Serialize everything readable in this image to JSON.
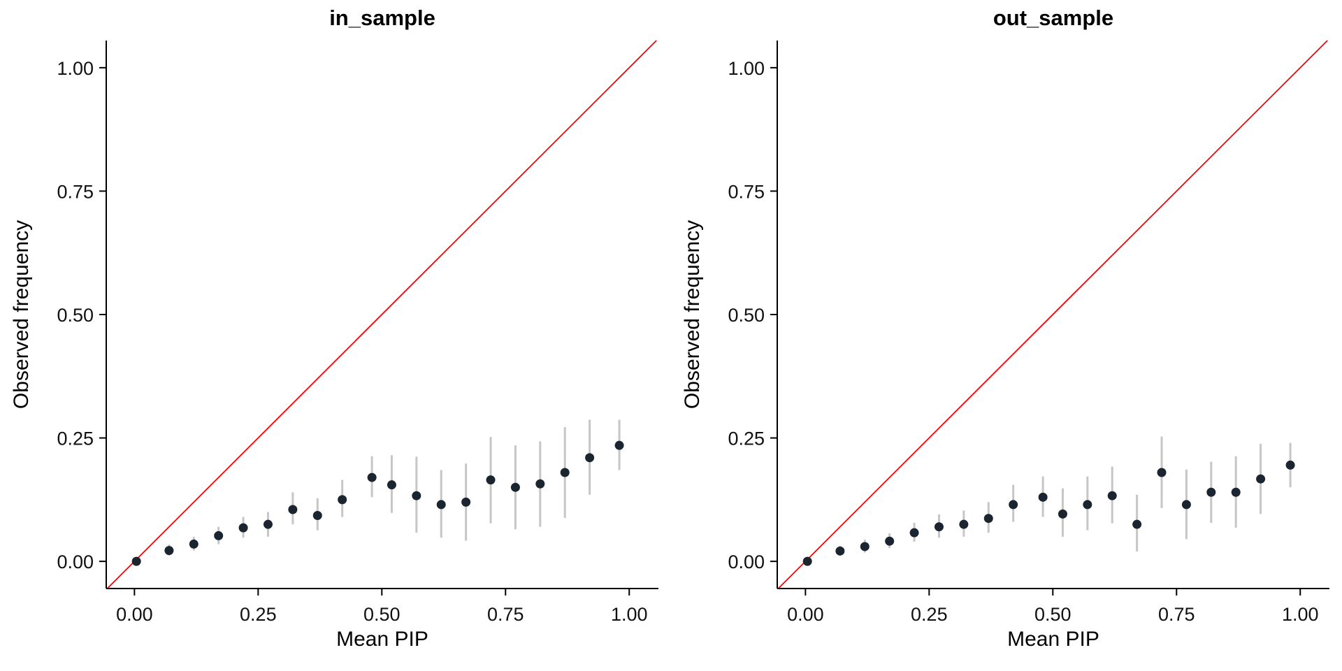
{
  "figure": {
    "background": "#ffffff"
  },
  "colors": {
    "point": "#1a2530",
    "errorbar": "#c6c6c6",
    "reference_line": "#ff0000",
    "axis": "#000000",
    "text": "#000000"
  },
  "chart_data": [
    {
      "type": "scatter",
      "title": "in_sample",
      "xlabel": "Mean PIP",
      "ylabel": "Observed frequency",
      "xlim": [
        -0.057,
        1.059
      ],
      "ylim": [
        -0.055,
        1.055
      ],
      "xtick_values": [
        0,
        0.25,
        0.5,
        0.75,
        1.0
      ],
      "xtick_labels": [
        "0.00",
        "0.25",
        "0.50",
        "0.75",
        "1.00"
      ],
      "ytick_values": [
        0,
        0.25,
        0.5,
        0.75,
        1.0
      ],
      "ytick_labels": [
        "0.00",
        "0.25",
        "0.50",
        "0.75",
        "1.00"
      ],
      "grid": false,
      "legend": "none",
      "reference_line": {
        "kind": "identity",
        "description": "y = x diagonal"
      },
      "points": [
        {
          "x": 0.004,
          "y": 0.0,
          "lo": 0.0,
          "hi": 0.004
        },
        {
          "x": 0.07,
          "y": 0.022,
          "lo": 0.012,
          "hi": 0.034
        },
        {
          "x": 0.12,
          "y": 0.035,
          "lo": 0.022,
          "hi": 0.05
        },
        {
          "x": 0.17,
          "y": 0.052,
          "lo": 0.035,
          "hi": 0.07
        },
        {
          "x": 0.22,
          "y": 0.068,
          "lo": 0.048,
          "hi": 0.09
        },
        {
          "x": 0.27,
          "y": 0.075,
          "lo": 0.05,
          "hi": 0.1
        },
        {
          "x": 0.32,
          "y": 0.105,
          "lo": 0.075,
          "hi": 0.14
        },
        {
          "x": 0.37,
          "y": 0.093,
          "lo": 0.063,
          "hi": 0.128
        },
        {
          "x": 0.42,
          "y": 0.125,
          "lo": 0.09,
          "hi": 0.165
        },
        {
          "x": 0.48,
          "y": 0.17,
          "lo": 0.13,
          "hi": 0.213
        },
        {
          "x": 0.52,
          "y": 0.155,
          "lo": 0.098,
          "hi": 0.215
        },
        {
          "x": 0.57,
          "y": 0.133,
          "lo": 0.058,
          "hi": 0.212
        },
        {
          "x": 0.62,
          "y": 0.115,
          "lo": 0.048,
          "hi": 0.185
        },
        {
          "x": 0.67,
          "y": 0.12,
          "lo": 0.042,
          "hi": 0.198
        },
        {
          "x": 0.72,
          "y": 0.165,
          "lo": 0.077,
          "hi": 0.252
        },
        {
          "x": 0.77,
          "y": 0.15,
          "lo": 0.065,
          "hi": 0.235
        },
        {
          "x": 0.82,
          "y": 0.157,
          "lo": 0.07,
          "hi": 0.243
        },
        {
          "x": 0.87,
          "y": 0.18,
          "lo": 0.088,
          "hi": 0.272
        },
        {
          "x": 0.92,
          "y": 0.21,
          "lo": 0.135,
          "hi": 0.287
        },
        {
          "x": 0.98,
          "y": 0.235,
          "lo": 0.185,
          "hi": 0.287
        }
      ]
    },
    {
      "type": "scatter",
      "title": "out_sample",
      "xlabel": "Mean PIP",
      "ylabel": "Observed frequency",
      "xlim": [
        -0.057,
        1.059
      ],
      "ylim": [
        -0.055,
        1.055
      ],
      "xtick_values": [
        0,
        0.25,
        0.5,
        0.75,
        1.0
      ],
      "xtick_labels": [
        "0.00",
        "0.25",
        "0.50",
        "0.75",
        "1.00"
      ],
      "ytick_values": [
        0,
        0.25,
        0.5,
        0.75,
        1.0
      ],
      "ytick_labels": [
        "0.00",
        "0.25",
        "0.50",
        "0.75",
        "1.00"
      ],
      "grid": false,
      "legend": "none",
      "reference_line": {
        "kind": "identity",
        "description": "y = x diagonal"
      },
      "points": [
        {
          "x": 0.004,
          "y": 0.0,
          "lo": 0.0,
          "hi": 0.004
        },
        {
          "x": 0.07,
          "y": 0.021,
          "lo": 0.012,
          "hi": 0.032
        },
        {
          "x": 0.12,
          "y": 0.03,
          "lo": 0.018,
          "hi": 0.044
        },
        {
          "x": 0.17,
          "y": 0.041,
          "lo": 0.027,
          "hi": 0.057
        },
        {
          "x": 0.22,
          "y": 0.058,
          "lo": 0.04,
          "hi": 0.078
        },
        {
          "x": 0.27,
          "y": 0.07,
          "lo": 0.048,
          "hi": 0.095
        },
        {
          "x": 0.32,
          "y": 0.075,
          "lo": 0.05,
          "hi": 0.103
        },
        {
          "x": 0.37,
          "y": 0.087,
          "lo": 0.058,
          "hi": 0.12
        },
        {
          "x": 0.42,
          "y": 0.115,
          "lo": 0.08,
          "hi": 0.155
        },
        {
          "x": 0.48,
          "y": 0.13,
          "lo": 0.09,
          "hi": 0.172
        },
        {
          "x": 0.52,
          "y": 0.096,
          "lo": 0.05,
          "hi": 0.148
        },
        {
          "x": 0.57,
          "y": 0.115,
          "lo": 0.063,
          "hi": 0.172
        },
        {
          "x": 0.62,
          "y": 0.133,
          "lo": 0.077,
          "hi": 0.192
        },
        {
          "x": 0.67,
          "y": 0.075,
          "lo": 0.02,
          "hi": 0.135
        },
        {
          "x": 0.72,
          "y": 0.18,
          "lo": 0.108,
          "hi": 0.253
        },
        {
          "x": 0.77,
          "y": 0.115,
          "lo": 0.045,
          "hi": 0.186
        },
        {
          "x": 0.82,
          "y": 0.14,
          "lo": 0.078,
          "hi": 0.202
        },
        {
          "x": 0.87,
          "y": 0.14,
          "lo": 0.068,
          "hi": 0.213
        },
        {
          "x": 0.92,
          "y": 0.167,
          "lo": 0.096,
          "hi": 0.238
        },
        {
          "x": 0.98,
          "y": 0.195,
          "lo": 0.15,
          "hi": 0.24
        }
      ]
    }
  ]
}
